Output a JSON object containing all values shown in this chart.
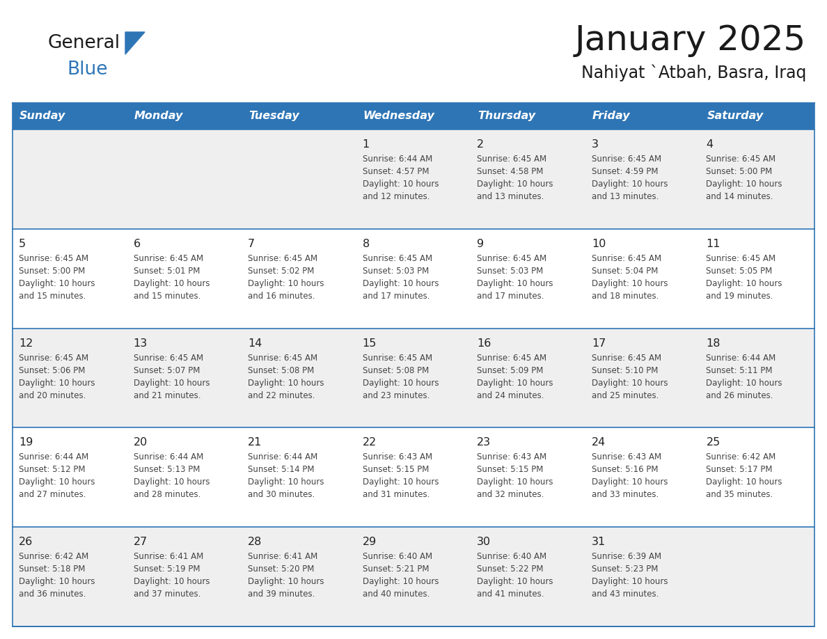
{
  "title": "January 2025",
  "subtitle": "Nahiyat `Atbah, Basra, Iraq",
  "header_color": "#2E75B6",
  "header_text_color": "#FFFFFF",
  "day_names": [
    "Sunday",
    "Monday",
    "Tuesday",
    "Wednesday",
    "Thursday",
    "Friday",
    "Saturday"
  ],
  "row0_bg": "#EFEFEF",
  "row1_bg": "#FFFFFF",
  "row2_bg": "#EFEFEF",
  "row3_bg": "#FFFFFF",
  "row4_bg": "#EFEFEF",
  "border_color": "#2E75B6",
  "text_color": "#444444",
  "day_num_color": "#222222",
  "days": [
    {
      "day": 1,
      "col": 3,
      "row": 0,
      "sunrise": "6:44 AM",
      "sunset": "4:57 PM",
      "dl1": "Daylight: 10 hours",
      "dl2": "and 12 minutes."
    },
    {
      "day": 2,
      "col": 4,
      "row": 0,
      "sunrise": "6:45 AM",
      "sunset": "4:58 PM",
      "dl1": "Daylight: 10 hours",
      "dl2": "and 13 minutes."
    },
    {
      "day": 3,
      "col": 5,
      "row": 0,
      "sunrise": "6:45 AM",
      "sunset": "4:59 PM",
      "dl1": "Daylight: 10 hours",
      "dl2": "and 13 minutes."
    },
    {
      "day": 4,
      "col": 6,
      "row": 0,
      "sunrise": "6:45 AM",
      "sunset": "5:00 PM",
      "dl1": "Daylight: 10 hours",
      "dl2": "and 14 minutes."
    },
    {
      "day": 5,
      "col": 0,
      "row": 1,
      "sunrise": "6:45 AM",
      "sunset": "5:00 PM",
      "dl1": "Daylight: 10 hours",
      "dl2": "and 15 minutes."
    },
    {
      "day": 6,
      "col": 1,
      "row": 1,
      "sunrise": "6:45 AM",
      "sunset": "5:01 PM",
      "dl1": "Daylight: 10 hours",
      "dl2": "and 15 minutes."
    },
    {
      "day": 7,
      "col": 2,
      "row": 1,
      "sunrise": "6:45 AM",
      "sunset": "5:02 PM",
      "dl1": "Daylight: 10 hours",
      "dl2": "and 16 minutes."
    },
    {
      "day": 8,
      "col": 3,
      "row": 1,
      "sunrise": "6:45 AM",
      "sunset": "5:03 PM",
      "dl1": "Daylight: 10 hours",
      "dl2": "and 17 minutes."
    },
    {
      "day": 9,
      "col": 4,
      "row": 1,
      "sunrise": "6:45 AM",
      "sunset": "5:03 PM",
      "dl1": "Daylight: 10 hours",
      "dl2": "and 17 minutes."
    },
    {
      "day": 10,
      "col": 5,
      "row": 1,
      "sunrise": "6:45 AM",
      "sunset": "5:04 PM",
      "dl1": "Daylight: 10 hours",
      "dl2": "and 18 minutes."
    },
    {
      "day": 11,
      "col": 6,
      "row": 1,
      "sunrise": "6:45 AM",
      "sunset": "5:05 PM",
      "dl1": "Daylight: 10 hours",
      "dl2": "and 19 minutes."
    },
    {
      "day": 12,
      "col": 0,
      "row": 2,
      "sunrise": "6:45 AM",
      "sunset": "5:06 PM",
      "dl1": "Daylight: 10 hours",
      "dl2": "and 20 minutes."
    },
    {
      "day": 13,
      "col": 1,
      "row": 2,
      "sunrise": "6:45 AM",
      "sunset": "5:07 PM",
      "dl1": "Daylight: 10 hours",
      "dl2": "and 21 minutes."
    },
    {
      "day": 14,
      "col": 2,
      "row": 2,
      "sunrise": "6:45 AM",
      "sunset": "5:08 PM",
      "dl1": "Daylight: 10 hours",
      "dl2": "and 22 minutes."
    },
    {
      "day": 15,
      "col": 3,
      "row": 2,
      "sunrise": "6:45 AM",
      "sunset": "5:08 PM",
      "dl1": "Daylight: 10 hours",
      "dl2": "and 23 minutes."
    },
    {
      "day": 16,
      "col": 4,
      "row": 2,
      "sunrise": "6:45 AM",
      "sunset": "5:09 PM",
      "dl1": "Daylight: 10 hours",
      "dl2": "and 24 minutes."
    },
    {
      "day": 17,
      "col": 5,
      "row": 2,
      "sunrise": "6:45 AM",
      "sunset": "5:10 PM",
      "dl1": "Daylight: 10 hours",
      "dl2": "and 25 minutes."
    },
    {
      "day": 18,
      "col": 6,
      "row": 2,
      "sunrise": "6:44 AM",
      "sunset": "5:11 PM",
      "dl1": "Daylight: 10 hours",
      "dl2": "and 26 minutes."
    },
    {
      "day": 19,
      "col": 0,
      "row": 3,
      "sunrise": "6:44 AM",
      "sunset": "5:12 PM",
      "dl1": "Daylight: 10 hours",
      "dl2": "and 27 minutes."
    },
    {
      "day": 20,
      "col": 1,
      "row": 3,
      "sunrise": "6:44 AM",
      "sunset": "5:13 PM",
      "dl1": "Daylight: 10 hours",
      "dl2": "and 28 minutes."
    },
    {
      "day": 21,
      "col": 2,
      "row": 3,
      "sunrise": "6:44 AM",
      "sunset": "5:14 PM",
      "dl1": "Daylight: 10 hours",
      "dl2": "and 30 minutes."
    },
    {
      "day": 22,
      "col": 3,
      "row": 3,
      "sunrise": "6:43 AM",
      "sunset": "5:15 PM",
      "dl1": "Daylight: 10 hours",
      "dl2": "and 31 minutes."
    },
    {
      "day": 23,
      "col": 4,
      "row": 3,
      "sunrise": "6:43 AM",
      "sunset": "5:15 PM",
      "dl1": "Daylight: 10 hours",
      "dl2": "and 32 minutes."
    },
    {
      "day": 24,
      "col": 5,
      "row": 3,
      "sunrise": "6:43 AM",
      "sunset": "5:16 PM",
      "dl1": "Daylight: 10 hours",
      "dl2": "and 33 minutes."
    },
    {
      "day": 25,
      "col": 6,
      "row": 3,
      "sunrise": "6:42 AM",
      "sunset": "5:17 PM",
      "dl1": "Daylight: 10 hours",
      "dl2": "and 35 minutes."
    },
    {
      "day": 26,
      "col": 0,
      "row": 4,
      "sunrise": "6:42 AM",
      "sunset": "5:18 PM",
      "dl1": "Daylight: 10 hours",
      "dl2": "and 36 minutes."
    },
    {
      "day": 27,
      "col": 1,
      "row": 4,
      "sunrise": "6:41 AM",
      "sunset": "5:19 PM",
      "dl1": "Daylight: 10 hours",
      "dl2": "and 37 minutes."
    },
    {
      "day": 28,
      "col": 2,
      "row": 4,
      "sunrise": "6:41 AM",
      "sunset": "5:20 PM",
      "dl1": "Daylight: 10 hours",
      "dl2": "and 39 minutes."
    },
    {
      "day": 29,
      "col": 3,
      "row": 4,
      "sunrise": "6:40 AM",
      "sunset": "5:21 PM",
      "dl1": "Daylight: 10 hours",
      "dl2": "and 40 minutes."
    },
    {
      "day": 30,
      "col": 4,
      "row": 4,
      "sunrise": "6:40 AM",
      "sunset": "5:22 PM",
      "dl1": "Daylight: 10 hours",
      "dl2": "and 41 minutes."
    },
    {
      "day": 31,
      "col": 5,
      "row": 4,
      "sunrise": "6:39 AM",
      "sunset": "5:23 PM",
      "dl1": "Daylight: 10 hours",
      "dl2": "and 43 minutes."
    }
  ]
}
